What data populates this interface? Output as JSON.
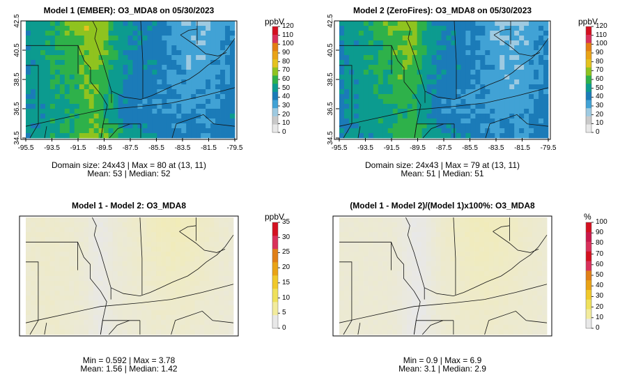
{
  "panels": [
    {
      "title": "Model 1 (EMBER): O3_MDA8 on 05/30/2023",
      "stats": [
        "Domain size: 24x43 | Max = 80 at (13, 11)",
        "Mean: 53 |  Median: 52"
      ],
      "colorbar": {
        "title": "ppbV",
        "ticks": [
          "120",
          "110",
          "100",
          "90",
          "80",
          "70",
          "60",
          "50",
          "40",
          "30",
          "20",
          "10",
          "0"
        ]
      },
      "has_axes": true
    },
    {
      "title": "Model 2 (ZeroFires): O3_MDA8 on 05/30/2023",
      "stats": [
        "Domain size: 24x43 | Max = 79 at (13, 11)",
        "Mean: 51 |  Median: 51"
      ],
      "colorbar": {
        "title": "ppbV",
        "ticks": [
          "120",
          "110",
          "100",
          "90",
          "80",
          "70",
          "60",
          "50",
          "40",
          "30",
          "20",
          "10",
          "0"
        ]
      },
      "has_axes": true
    },
    {
      "title": "Model 1 - Model 2: O3_MDA8",
      "stats": [
        "Min = 0.592 | Max = 3.78",
        "Mean: 1.56 |  Median: 1.42"
      ],
      "colorbar": {
        "title": "ppbV",
        "ticks": [
          "35",
          "30",
          "25",
          "20",
          "15",
          "10",
          "5",
          "0"
        ]
      },
      "has_axes": false
    },
    {
      "title": "(Model 1 - Model 2)/(Model 1)x100%: O3_MDA8",
      "stats": [
        "Min = 0.9 | Max = 6.9",
        "Mean: 3.1 |  Median: 2.9"
      ],
      "colorbar": {
        "title": "%",
        "ticks": [
          "100",
          "90",
          "80",
          "70",
          "60",
          "50",
          "40",
          "30",
          "20",
          "10",
          "0"
        ]
      },
      "has_axes": false
    }
  ],
  "chart_data": {
    "type": "heatmap",
    "variable": "O3_MDA8",
    "date": "05/30/2023",
    "grid_size": [
      24,
      43
    ],
    "x_ticks": [
      "-95.5",
      "-93.5",
      "-91.5",
      "-89.5",
      "-87.5",
      "-85.5",
      "-83.5",
      "-81.5",
      "-79.5"
    ],
    "y_ticks": [
      "42.5",
      "40.5",
      "38.5",
      "36.5",
      "34.5"
    ],
    "x_range": [
      -95.5,
      -79.5
    ],
    "y_range": [
      34.5,
      42.5
    ],
    "maps": [
      {
        "name": "Model 1 (EMBER)",
        "units": "ppbV",
        "scale": [
          0,
          120
        ],
        "max": 80,
        "max_at": [
          13,
          11
        ],
        "mean": 53,
        "median": 52
      },
      {
        "name": "Model 2 (ZeroFires)",
        "units": "ppbV",
        "scale": [
          0,
          120
        ],
        "max": 79,
        "max_at": [
          13,
          11
        ],
        "mean": 51,
        "median": 51
      },
      {
        "name": "Model 1 - Model 2",
        "units": "ppbV",
        "scale": [
          0,
          35
        ],
        "min": 0.592,
        "max": 3.78,
        "mean": 1.56,
        "median": 1.42
      },
      {
        "name": "(Model 1 - Model 2)/(Model 1)x100%",
        "units": "%",
        "scale": [
          0,
          100
        ],
        "min": 0.9,
        "max": 6.9,
        "mean": 3.1,
        "median": 2.9
      }
    ],
    "colors": {
      "ppb_scale": [
        "#e8e8e8",
        "#c9c9c9",
        "#9ecae1",
        "#41a2d5",
        "#1b7bb8",
        "#0c9b8f",
        "#2eb14a",
        "#8fc31f",
        "#e4c21e",
        "#e9a316",
        "#e27e12",
        "#d9305a",
        "#d41020"
      ],
      "diff_scale": [
        "#e8e8e8",
        "#f2eb9c",
        "#efe15c",
        "#f0c92b",
        "#e9a316",
        "#e07f17",
        "#d9305a",
        "#d41020"
      ]
    }
  }
}
